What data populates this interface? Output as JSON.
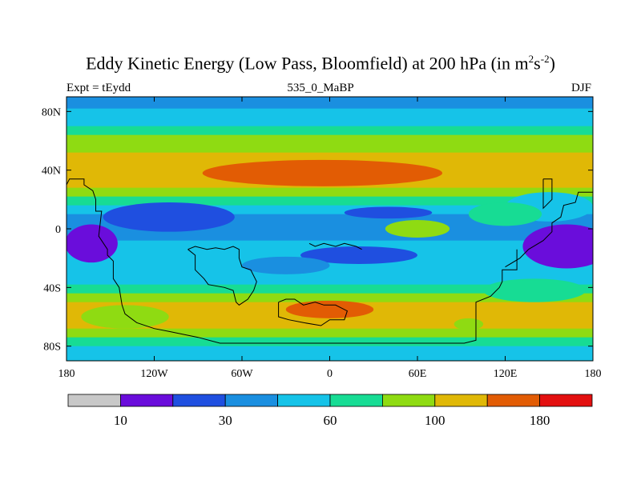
{
  "header": {
    "title_main": "Eddy Kinetic Energy (Low Pass, Bloomfield) at 200 hPa (in m",
    "title_sup1": "2",
    "title_mid": "s",
    "title_sup2": "-2",
    "title_end": ")",
    "left": "Expt = tEydd",
    "center": "535_0_MaBP",
    "right": "DJF"
  },
  "chart_data": {
    "type": "heatmap",
    "title": "Eddy Kinetic Energy (Low Pass, Bloomfield) at 200 hPa (in m2s-2)",
    "xlim": [
      -180,
      180
    ],
    "ylim": [
      -90,
      90
    ],
    "x_ticks": [
      {
        "value": -180,
        "label": "180"
      },
      {
        "value": -120,
        "label": "120W"
      },
      {
        "value": -60,
        "label": "60W"
      },
      {
        "value": 0,
        "label": "0"
      },
      {
        "value": 60,
        "label": "60E"
      },
      {
        "value": 120,
        "label": "120E"
      },
      {
        "value": 180,
        "label": "180"
      }
    ],
    "y_ticks": [
      {
        "value": 80,
        "label": "80N"
      },
      {
        "value": 40,
        "label": "40N"
      },
      {
        "value": 0,
        "label": "0"
      },
      {
        "value": -40,
        "label": "40S"
      },
      {
        "value": -80,
        "label": "80S"
      }
    ],
    "colorbar": {
      "colors": [
        "#c8c8c8",
        "#6a0ddb",
        "#1f4fe0",
        "#1a8fe0",
        "#16c3e8",
        "#17dc94",
        "#8fdb12",
        "#e0b806",
        "#e25c04",
        "#e31010"
      ],
      "labels": [
        {
          "after_box": 1,
          "label": "10"
        },
        {
          "after_box": 3,
          "label": "30"
        },
        {
          "after_box": 5,
          "label": "60"
        },
        {
          "after_box": 7,
          "label": "100"
        },
        {
          "after_box": 9,
          "label": "180"
        }
      ]
    },
    "field": {
      "bands": [
        {
          "lat": 90,
          "level": 3
        },
        {
          "lat": 82,
          "level": 4
        },
        {
          "lat": 76,
          "level": 4
        },
        {
          "lat": 70,
          "level": 5
        },
        {
          "lat": 64,
          "level": 6
        },
        {
          "lat": 58,
          "level": 6
        },
        {
          "lat": 52,
          "level": 7
        },
        {
          "lat": 46,
          "level": 7
        },
        {
          "lat": 40,
          "level": 7
        },
        {
          "lat": 34,
          "level": 7
        },
        {
          "lat": 28,
          "level": 6
        },
        {
          "lat": 22,
          "level": 5
        },
        {
          "lat": 16,
          "level": 4
        },
        {
          "lat": 10,
          "level": 3
        },
        {
          "lat": 4,
          "level": 3
        },
        {
          "lat": -2,
          "level": 3
        },
        {
          "lat": -8,
          "level": 4
        },
        {
          "lat": -14,
          "level": 4
        },
        {
          "lat": -20,
          "level": 4
        },
        {
          "lat": -26,
          "level": 4
        },
        {
          "lat": -32,
          "level": 4
        },
        {
          "lat": -38,
          "level": 5
        },
        {
          "lat": -44,
          "level": 6
        },
        {
          "lat": -50,
          "level": 7
        },
        {
          "lat": -56,
          "level": 7
        },
        {
          "lat": -62,
          "level": 7
        },
        {
          "lat": -68,
          "level": 6
        },
        {
          "lat": -74,
          "level": 5
        },
        {
          "lat": -80,
          "level": 4
        },
        {
          "lat": -86,
          "level": 4
        },
        {
          "lat": -90,
          "level": 3
        }
      ],
      "features": [
        {
          "lon": -5,
          "lat": 38,
          "rlon": 82,
          "rlat": 9,
          "level": 8
        },
        {
          "lon": 0,
          "lat": -55,
          "rlon": 30,
          "rlat": 6,
          "level": 8
        },
        {
          "lon": -163,
          "lat": -10,
          "rlon": 18,
          "rlat": 13,
          "level": 1
        },
        {
          "lon": 162,
          "lat": -12,
          "rlon": 30,
          "rlat": 15,
          "level": 1
        },
        {
          "lon": -110,
          "lat": 8,
          "rlon": 45,
          "rlat": 10,
          "level": 2
        },
        {
          "lon": 40,
          "lat": 11,
          "rlon": 30,
          "rlat": 4,
          "level": 2
        },
        {
          "lon": 20,
          "lat": -18,
          "rlon": 40,
          "rlat": 6,
          "level": 2
        },
        {
          "lon": 60,
          "lat": 0,
          "rlon": 22,
          "rlat": 6,
          "level": 6
        },
        {
          "lon": 150,
          "lat": 15,
          "rlon": 30,
          "rlat": 10,
          "level": 4
        },
        {
          "lon": 140,
          "lat": -42,
          "rlon": 35,
          "rlat": 8,
          "level": 5
        },
        {
          "lon": 95,
          "lat": -65,
          "rlon": 10,
          "rlat": 4,
          "level": 6
        },
        {
          "lon": -140,
          "lat": -60,
          "rlon": 30,
          "rlat": 8,
          "level": 6
        },
        {
          "lon": -30,
          "lat": -25,
          "rlon": 30,
          "rlat": 6,
          "level": 3
        },
        {
          "lon": 120,
          "lat": 10,
          "rlon": 25,
          "rlat": 8,
          "level": 5
        }
      ]
    },
    "coastlines": [
      {
        "name": "americas",
        "points": [
          [
            -180,
            30
          ],
          [
            -178,
            34
          ],
          [
            -168,
            34
          ],
          [
            -168,
            30
          ],
          [
            -162,
            26
          ],
          [
            -160,
            20
          ],
          [
            -160,
            12
          ],
          [
            -156,
            12
          ],
          [
            -158,
            -5
          ],
          [
            -152,
            -14
          ],
          [
            -152,
            -18
          ],
          [
            -148,
            -22
          ],
          [
            -148,
            -34
          ],
          [
            -144,
            -40
          ],
          [
            -142,
            -52
          ],
          [
            -140,
            -58
          ],
          [
            -132,
            -64
          ],
          [
            -120,
            -68
          ],
          [
            -110,
            -70
          ],
          [
            -90,
            -74
          ],
          [
            -75,
            -78
          ],
          [
            -50,
            -78
          ],
          [
            -30,
            -78
          ],
          [
            -20,
            -78
          ],
          [
            10,
            -78
          ],
          [
            40,
            -78
          ],
          [
            70,
            -78
          ],
          [
            92,
            -78
          ],
          [
            100,
            -76
          ],
          [
            100,
            -60
          ],
          [
            100,
            -50
          ],
          [
            110,
            -46
          ],
          [
            116,
            -40
          ],
          [
            118,
            -36
          ],
          [
            118,
            -28
          ],
          [
            128,
            -28
          ],
          [
            128,
            -14
          ]
        ]
      },
      {
        "name": "africa",
        "points": [
          [
            -97,
            -14
          ],
          [
            -92,
            -18
          ],
          [
            -92,
            -28
          ],
          [
            -86,
            -34
          ],
          [
            -83,
            -38
          ],
          [
            -72,
            -40
          ],
          [
            -66,
            -42
          ],
          [
            -64,
            -50
          ],
          [
            -62,
            -52
          ],
          [
            -56,
            -48
          ],
          [
            -52,
            -42
          ],
          [
            -50,
            -36
          ],
          [
            -54,
            -28
          ],
          [
            -60,
            -26
          ],
          [
            -62,
            -20
          ],
          [
            -62,
            -14
          ],
          [
            -66,
            -12
          ],
          [
            -72,
            -14
          ],
          [
            -78,
            -13
          ],
          [
            -84,
            -14
          ],
          [
            -92,
            -12
          ],
          [
            -97,
            -14
          ]
        ]
      },
      {
        "name": "australia",
        "points": [
          [
            -35,
            -50
          ],
          [
            -30,
            -48
          ],
          [
            -24,
            -48
          ],
          [
            -18,
            -52
          ],
          [
            -10,
            -50
          ],
          [
            -4,
            -52
          ],
          [
            4,
            -52
          ],
          [
            12,
            -56
          ],
          [
            10,
            -62
          ],
          [
            0,
            -62
          ],
          [
            -6,
            -66
          ],
          [
            -18,
            -64
          ],
          [
            -28,
            -62
          ],
          [
            -35,
            -60
          ],
          [
            -35,
            -50
          ]
        ]
      },
      {
        "name": "asia-islands",
        "points": [
          [
            -14,
            -10
          ],
          [
            -10,
            -12
          ],
          [
            -4,
            -10
          ],
          [
            4,
            -12
          ],
          [
            10,
            -10
          ],
          [
            18,
            -12
          ],
          [
            22,
            -14
          ]
        ]
      },
      {
        "name": "pacific-east",
        "points": [
          [
            180,
            25
          ],
          [
            170,
            25
          ],
          [
            168,
            18
          ],
          [
            160,
            16
          ],
          [
            158,
            8
          ],
          [
            152,
            4
          ],
          [
            152,
            -2
          ],
          [
            146,
            -8
          ],
          [
            136,
            -14
          ],
          [
            130,
            -20
          ],
          [
            120,
            -26
          ]
        ]
      },
      {
        "name": "japan",
        "points": [
          [
            146,
            34
          ],
          [
            152,
            34
          ],
          [
            152,
            20
          ],
          [
            148,
            16
          ],
          [
            146,
            14
          ],
          [
            146,
            34
          ]
        ]
      }
    ]
  }
}
